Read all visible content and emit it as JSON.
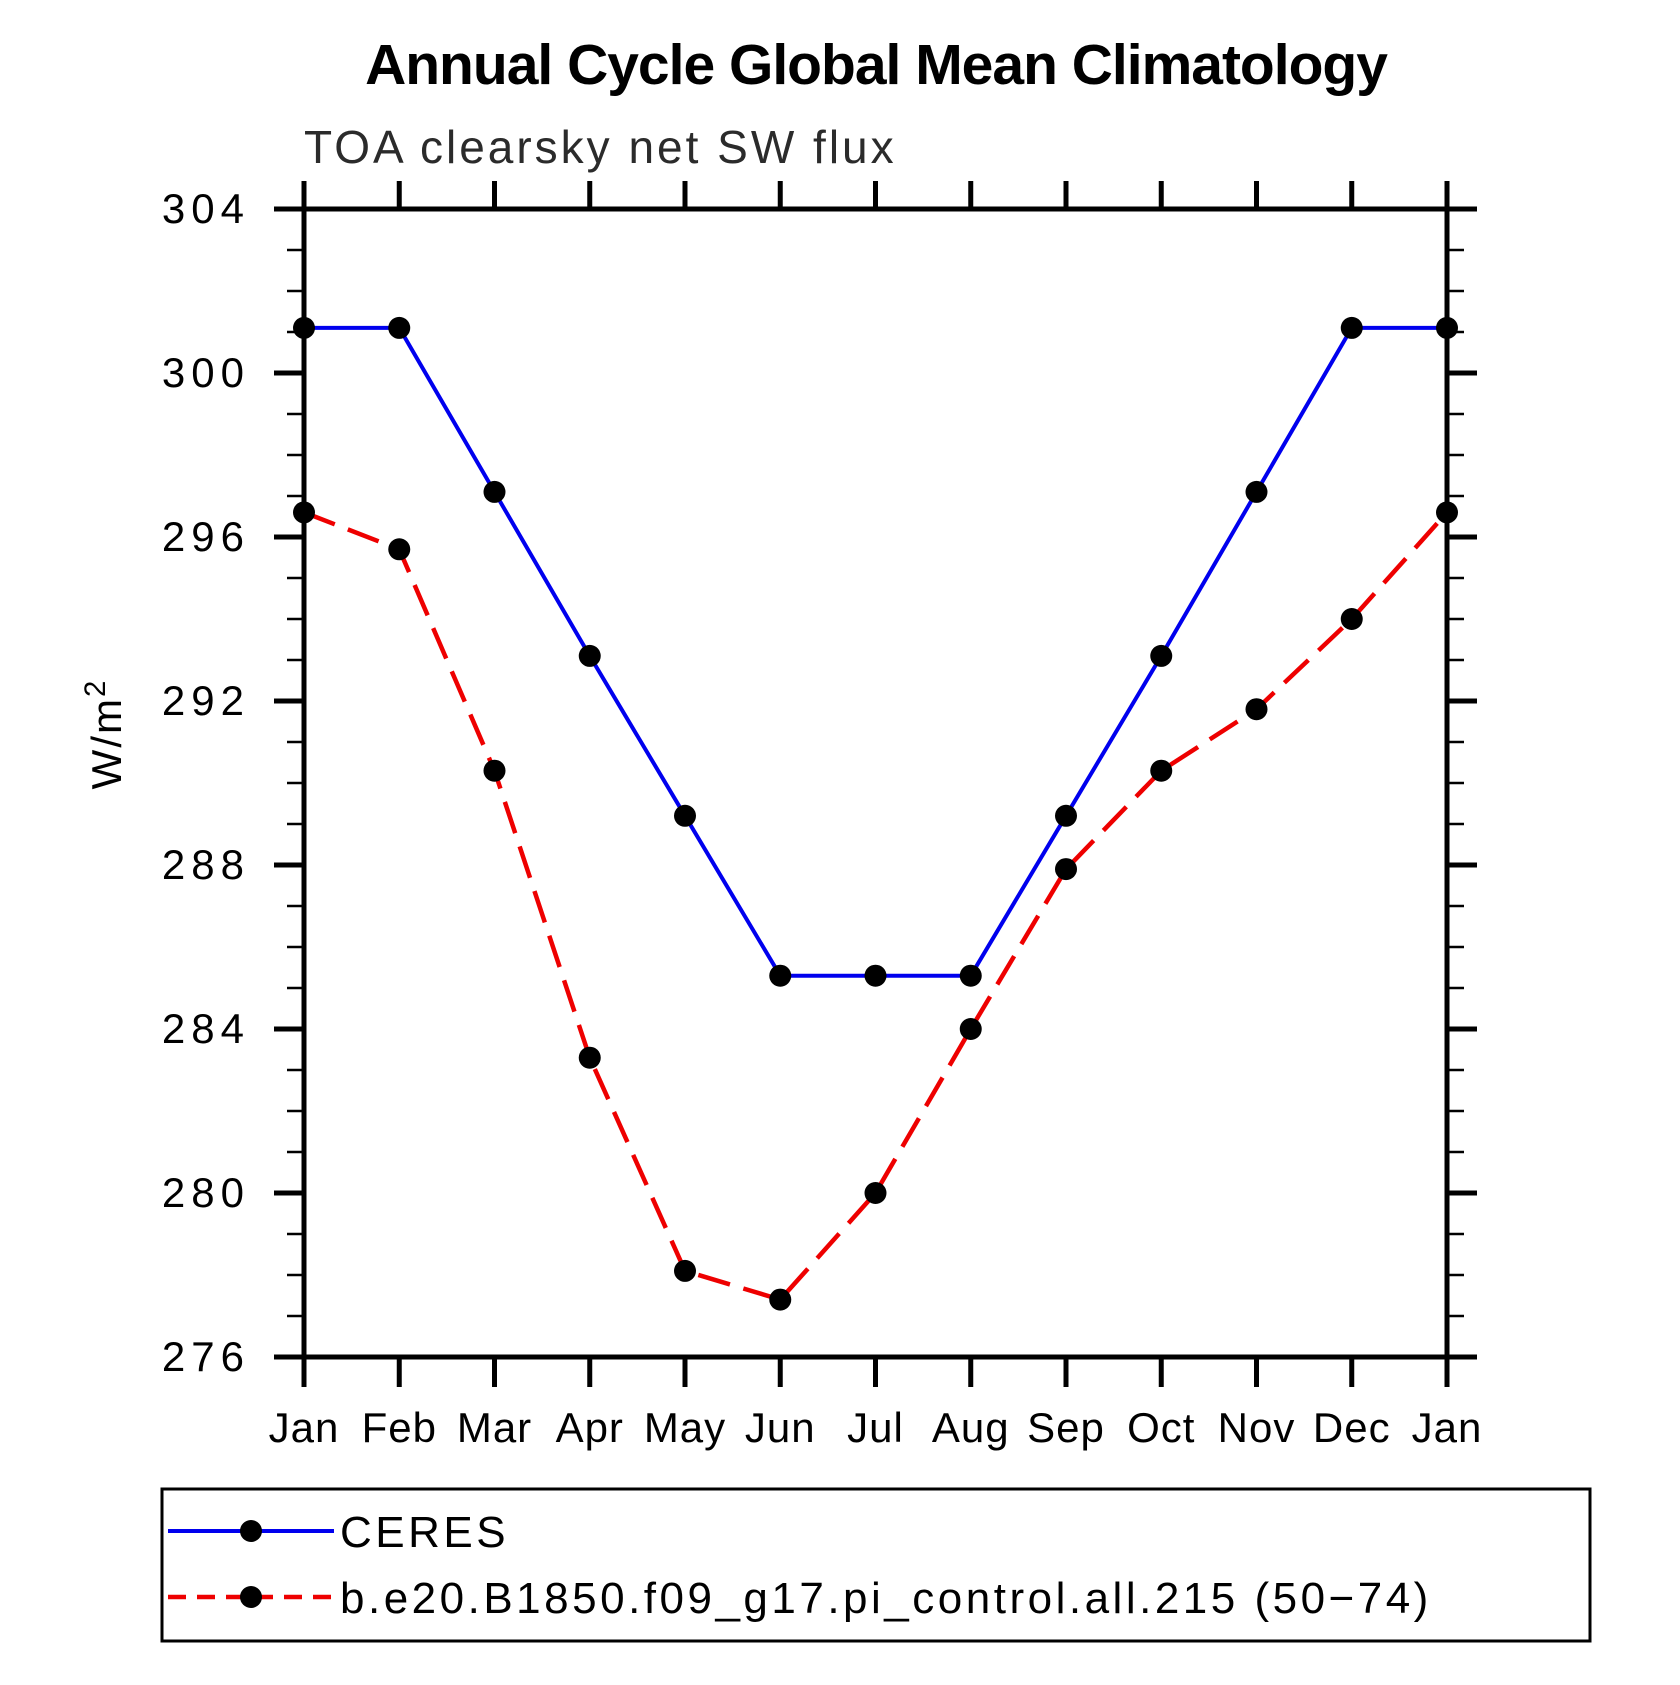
{
  "title": "Annual Cycle Global Mean Climatology",
  "subtitle": "TOA clearsky net SW flux",
  "y_axis": {
    "label_base": "W/m",
    "label_exponent": "2",
    "min": 276,
    "max": 304,
    "major_tick_step": 4,
    "minor_tick_step": 1,
    "major_tick_values": [
      276,
      280,
      284,
      288,
      292,
      296,
      300,
      304
    ]
  },
  "x_axis": {
    "tick_labels": [
      "Jan",
      "Feb",
      "Mar",
      "Apr",
      "May",
      "Jun",
      "Jul",
      "Aug",
      "Sep",
      "Oct",
      "Nov",
      "Dec",
      "Jan"
    ]
  },
  "chart_data": {
    "type": "line",
    "title": "Annual Cycle Global Mean Climatology",
    "subtitle": "TOA clearsky net SW flux",
    "xlabel": "",
    "ylabel": "W/m2",
    "categories": [
      "Jan",
      "Feb",
      "Mar",
      "Apr",
      "May",
      "Jun",
      "Jul",
      "Aug",
      "Sep",
      "Oct",
      "Nov",
      "Dec",
      "Jan"
    ],
    "ylim": [
      276,
      304
    ],
    "grid": "off",
    "legend_position": "bottom-left-box",
    "series": [
      {
        "name": "CERES",
        "line_style": "solid",
        "color": "#0000ee",
        "marker": "filled-circle",
        "marker_color": "#000000",
        "values": [
          301.1,
          301.1,
          297.1,
          293.1,
          289.2,
          285.3,
          285.3,
          285.3,
          289.2,
          293.1,
          297.1,
          301.1,
          301.1
        ]
      },
      {
        "name": "b.e20.B1850.f09_g17.pi_control.all.215 (50−74)",
        "line_style": "dashed",
        "color": "#ee0000",
        "marker": "filled-circle",
        "marker_color": "#000000",
        "values": [
          296.6,
          295.7,
          290.3,
          283.3,
          278.1,
          277.4,
          280.0,
          284.0,
          287.9,
          290.3,
          291.8,
          294.0,
          296.6
        ]
      }
    ]
  }
}
